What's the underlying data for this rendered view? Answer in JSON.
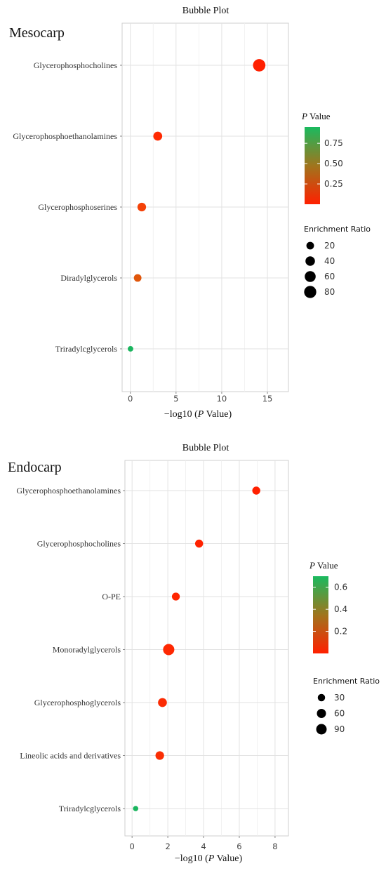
{
  "chart_data": [
    {
      "type": "scatter",
      "title": "Bubble Plot",
      "panel_label": "Mesocarp",
      "xlabel": "−log10 (P Value)",
      "xlim": [
        -0.9,
        17.3
      ],
      "xticks": [
        0,
        5,
        10,
        15
      ],
      "categories": [
        "Glycerophosphocholines",
        "Glycerophosphoethanolamines",
        "Glycerophosphoserines",
        "Diradylglycerols",
        "Triradylcglycerols"
      ],
      "points": [
        {
          "category": "Glycerophosphocholines",
          "x": 14.1,
          "p_value": 0.0,
          "enrichment_ratio": 85,
          "color": "#ff2000"
        },
        {
          "category": "Glycerophosphoethanolamines",
          "x": 3.0,
          "p_value": 0.001,
          "enrichment_ratio": 33,
          "color": "#ff2a02"
        },
        {
          "category": "Glycerophosphoserines",
          "x": 1.25,
          "p_value": 0.06,
          "enrichment_ratio": 30,
          "color": "#f44208"
        },
        {
          "category": "Diradylglycerols",
          "x": 0.8,
          "p_value": 0.16,
          "enrichment_ratio": 20,
          "color": "#e0560b"
        },
        {
          "category": "Triradylcglycerols",
          "x": 0.02,
          "p_value": 0.95,
          "enrichment_ratio": 6,
          "color": "#1ab55e"
        }
      ],
      "color_legend": {
        "title_italic": "P",
        "title_rest": " Value",
        "ticks": [
          0.75,
          0.5,
          0.25
        ],
        "tick_labels": [
          "0.75",
          "0.50",
          "0.25"
        ],
        "range": [
          0.0,
          0.95
        ],
        "low_color": "#ff2000",
        "mid_color": "#a0751d",
        "high_color": "#1aba5f"
      },
      "size_legend": {
        "title": "Enrichment Ratio",
        "values": [
          20,
          40,
          60,
          80
        ],
        "labels": [
          "20",
          "40",
          "60",
          "80"
        ]
      },
      "grid": true
    },
    {
      "type": "scatter",
      "title": "Bubble Plot",
      "panel_label": "Endocarp",
      "xlabel": "−log10 (P Value)",
      "xlim": [
        -0.4,
        8.75
      ],
      "xticks": [
        0,
        2,
        4,
        6,
        8
      ],
      "categories": [
        "Glycerophosphoethanolamines",
        "Glycerophosphocholines",
        "O-PE",
        "Monoradylglycerols",
        "Glycerophosphoglycerols",
        "Lineolic acids and derivatives",
        "Triradylcglycerols"
      ],
      "points": [
        {
          "category": "Glycerophosphoethanolamines",
          "x": 6.95,
          "p_value": 0.0,
          "enrichment_ratio": 40,
          "color": "#ff2000"
        },
        {
          "category": "Glycerophosphocholines",
          "x": 3.75,
          "p_value": 0.001,
          "enrichment_ratio": 40,
          "color": "#ff2200"
        },
        {
          "category": "O-PE",
          "x": 2.45,
          "p_value": 0.004,
          "enrichment_ratio": 38,
          "color": "#fe2501"
        },
        {
          "category": "Monoradylglycerols",
          "x": 2.05,
          "p_value": 0.009,
          "enrichment_ratio": 110,
          "color": "#fe2802"
        },
        {
          "category": "Glycerophosphoglycerols",
          "x": 1.7,
          "p_value": 0.02,
          "enrichment_ratio": 55,
          "color": "#fb2b03"
        },
        {
          "category": "Lineolic acids and derivatives",
          "x": 1.55,
          "p_value": 0.028,
          "enrichment_ratio": 50,
          "color": "#fa2e04"
        },
        {
          "category": "Triradylcglycerols",
          "x": 0.2,
          "p_value": 0.63,
          "enrichment_ratio": 8,
          "color": "#1ab55e"
        }
      ],
      "color_legend": {
        "title_italic": "P",
        "title_rest": " Value",
        "ticks": [
          0.6,
          0.4,
          0.2
        ],
        "tick_labels": [
          "0.6",
          "0.4",
          "0.2"
        ],
        "range": [
          0.0,
          0.7
        ],
        "low_color": "#ff2000",
        "mid_color": "#a0751d",
        "high_color": "#1aba5f"
      },
      "size_legend": {
        "title": "Enrichment Ratio",
        "values": [
          30,
          60,
          90
        ],
        "labels": [
          "30",
          "60",
          "90"
        ]
      },
      "grid": true
    }
  ]
}
